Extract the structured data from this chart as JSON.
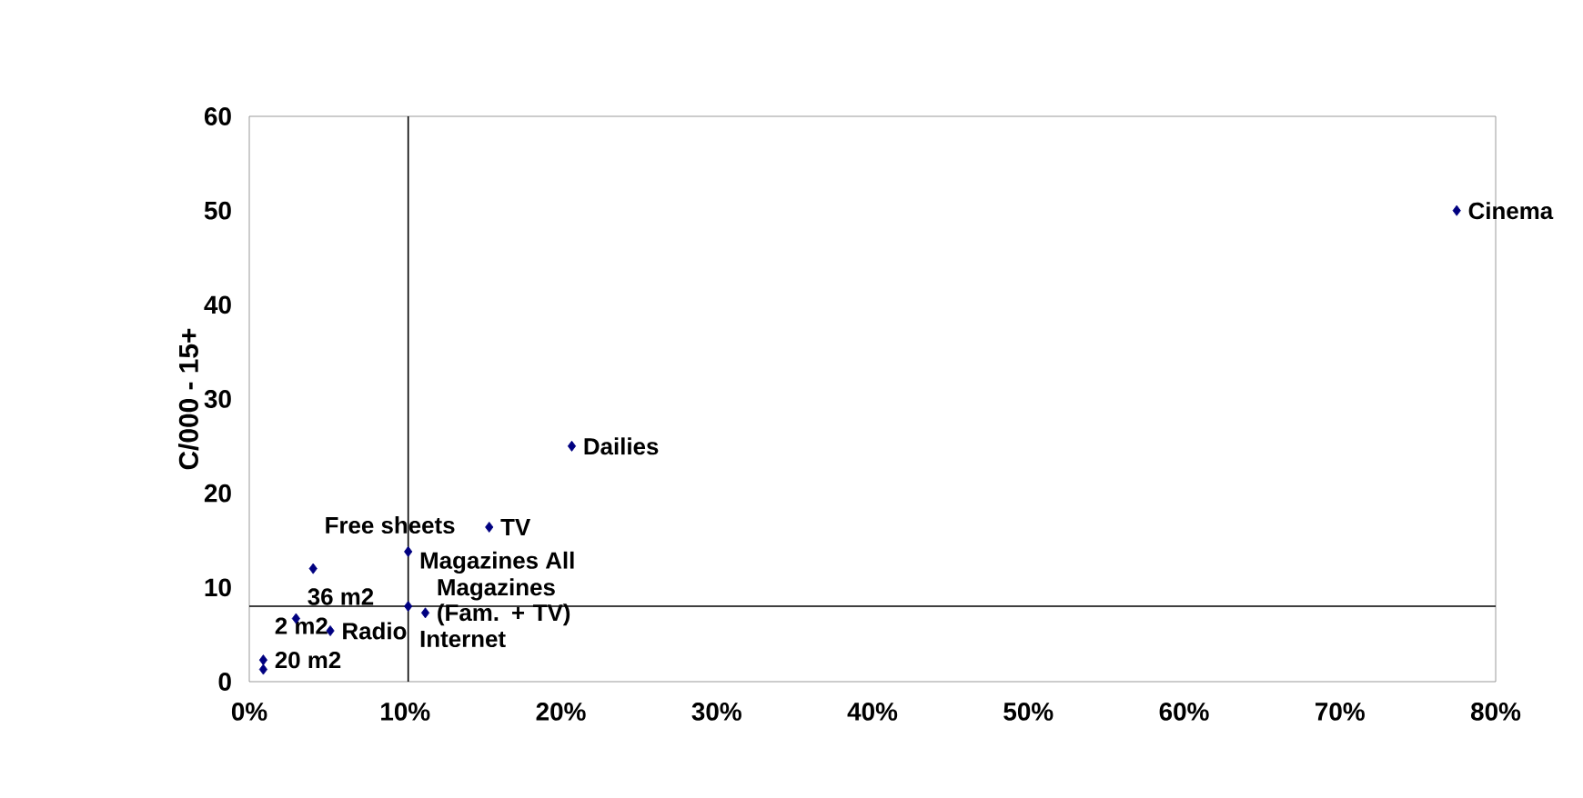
{
  "chart_data": {
    "type": "scatter",
    "ylabel": "C/000 - 15+",
    "xlim": [
      0,
      80
    ],
    "xticks": [
      {
        "value": 0,
        "label": "0%"
      },
      {
        "value": 10,
        "label": "10%"
      },
      {
        "value": 20,
        "label": "20%"
      },
      {
        "value": 30,
        "label": "30%"
      },
      {
        "value": 40,
        "label": "40%"
      },
      {
        "value": 50,
        "label": "50%"
      },
      {
        "value": 60,
        "label": "60%"
      },
      {
        "value": 70,
        "label": "70%"
      },
      {
        "value": 80,
        "label": "80%"
      }
    ],
    "ylim": [
      0,
      60
    ],
    "yticks": [
      0,
      10,
      20,
      30,
      40,
      50,
      60
    ],
    "series": [
      {
        "color": "#000080",
        "x": [
          77.5,
          20.7,
          15.4,
          10.2,
          4.1,
          10.2,
          11.3,
          3.0,
          5.2,
          0.9,
          0.9
        ],
        "values": [
          50,
          25,
          16.4,
          13.8,
          12.0,
          8.0,
          7.3,
          6.7,
          5.4,
          2.3,
          1.3
        ]
      }
    ],
    "annotations": [
      {
        "text": "Cinema",
        "x": 77.5,
        "y": 50
      },
      {
        "text": "Dailies",
        "x": 20.7,
        "y": 25
      },
      {
        "text": "TV",
        "x": 15.4,
        "y": 16.4
      },
      {
        "text": "Magazines All",
        "x": 10.2,
        "y": 13.8
      },
      {
        "text": "Free sheets",
        "x": 4.1,
        "y": 12.0
      },
      {
        "text": "Internet",
        "x": 10.2,
        "y": 8.0
      },
      {
        "text": "Magazines (Fam. + TV)",
        "x": 11.3,
        "y": 7.3
      },
      {
        "text": "36 m2",
        "x": 3.0,
        "y": 6.7
      },
      {
        "text": "Radio",
        "x": 5.2,
        "y": 5.4
      },
      {
        "text": "20 m2",
        "x": 0.9,
        "y": 2.3
      },
      {
        "text": "2 m2",
        "x": 0.9,
        "y": 1.3
      }
    ],
    "ref_lines": [
      {
        "axis": "x",
        "value": 10.2,
        "color": "#000000"
      },
      {
        "axis": "y",
        "value": 8.0,
        "color": "#000000"
      }
    ],
    "marker": "diamond",
    "grid": false
  }
}
